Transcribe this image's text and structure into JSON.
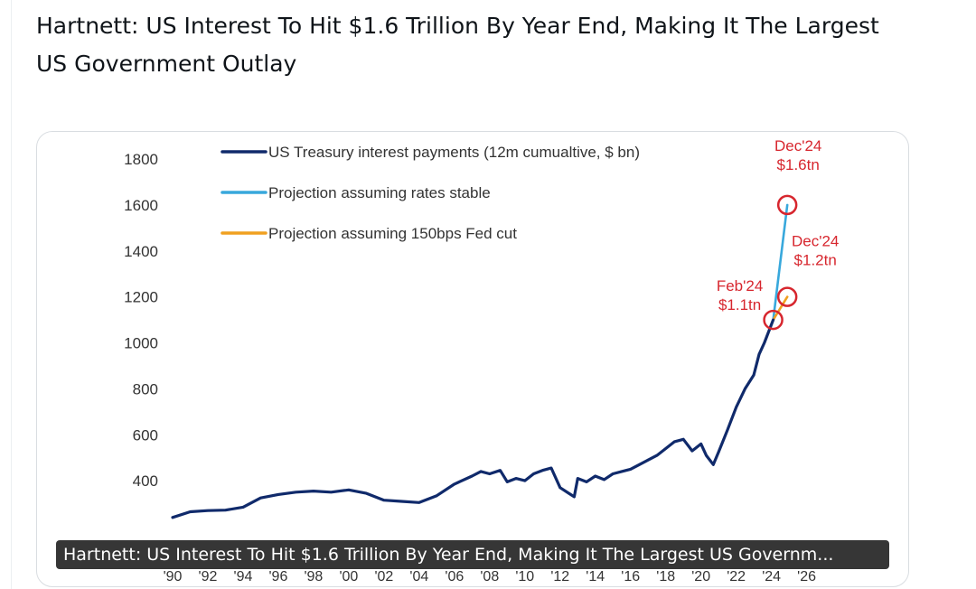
{
  "post": {
    "title": "Hartnett: US Interest To Hit $1.6 Trillion By Year End, Making It The Largest US Government Outlay"
  },
  "caption": {
    "text": "Hartnett: US Interest To Hit $1.6 Trillion By Year End, Making It The Largest US Governm..."
  },
  "colors": {
    "history": "#102a6b",
    "stable": "#38a8dc",
    "fedcut": "#f0a020",
    "annotation": "#d7262e"
  },
  "chart_data": {
    "type": "line",
    "title": "",
    "xlabel": "",
    "ylabel": "",
    "xlim": [
      1990,
      2027.2
    ],
    "ylim": [
      200,
      1800
    ],
    "yticks": [
      400,
      600,
      800,
      1000,
      1200,
      1400,
      1600,
      1800
    ],
    "ytick_labels": [
      "400",
      "600",
      "800",
      "1000",
      "1200",
      "1400",
      "1600",
      "1800"
    ],
    "xticks": [
      1990,
      1992,
      1994,
      1996,
      1998,
      2000,
      2002,
      2004,
      2006,
      2008,
      2010,
      2012,
      2014,
      2016,
      2018,
      2020,
      2022,
      2024,
      2026
    ],
    "xtick_labels": [
      "'90",
      "'92",
      "'94",
      "'96",
      "'98",
      "'00",
      "'02",
      "'04",
      "'06",
      "'08",
      "'10",
      "'12",
      "'14",
      "'16",
      "'18",
      "'20",
      "'22",
      "'24",
      "'26"
    ],
    "series": [
      {
        "name": "US Treasury interest payments (12m cumualtive, $ bn)",
        "color": "#102a6b",
        "x": [
          1990,
          1991,
          1992,
          1993,
          1994,
          1995,
          1996,
          1997,
          1998,
          1999,
          2000,
          2001,
          2002,
          2003,
          2004,
          2005,
          2006,
          2007,
          2007.5,
          2008,
          2008.6,
          2009,
          2009.5,
          2010,
          2010.5,
          2011,
          2011.5,
          2012,
          2012.5,
          2012.8,
          2013,
          2013.5,
          2014,
          2014.5,
          2015,
          2015.5,
          2016,
          2016.5,
          2017,
          2017.5,
          2018,
          2018.5,
          2019,
          2019.5,
          2020,
          2020.3,
          2020.7,
          2021,
          2021.5,
          2022,
          2022.5,
          2023,
          2023.3,
          2023.6,
          2024.1
        ],
        "values": [
          240,
          265,
          270,
          272,
          285,
          325,
          340,
          350,
          355,
          350,
          360,
          345,
          315,
          310,
          305,
          335,
          385,
          420,
          440,
          430,
          445,
          395,
          410,
          400,
          430,
          445,
          455,
          370,
          345,
          330,
          410,
          395,
          420,
          405,
          430,
          440,
          450,
          470,
          490,
          510,
          540,
          570,
          580,
          530,
          560,
          510,
          470,
          525,
          620,
          720,
          800,
          860,
          950,
          1000,
          1100
        ]
      },
      {
        "name": "Projection assuming rates stable",
        "color": "#38a8dc",
        "x": [
          2024.1,
          2024.9
        ],
        "values": [
          1100,
          1600
        ]
      },
      {
        "name": "Projection assuming 150bps Fed cut",
        "color": "#f0a020",
        "x": [
          2024.1,
          2024.9
        ],
        "values": [
          1100,
          1200
        ]
      }
    ],
    "annotations": [
      {
        "label": "Dec'24",
        "value_label": "$1.6tn",
        "x": 2024.9,
        "y": 1600
      },
      {
        "label": "Dec'24",
        "value_label": "$1.2tn",
        "x": 2024.9,
        "y": 1200
      },
      {
        "label": "Feb'24",
        "value_label": "$1.1tn",
        "x": 2024.1,
        "y": 1100
      }
    ],
    "legend_position": "top-left"
  }
}
